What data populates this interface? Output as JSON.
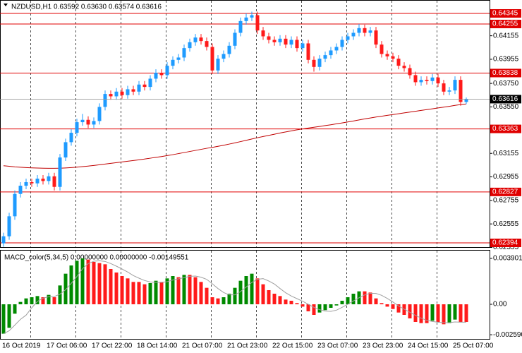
{
  "chart_data": [
    {
      "type": "candlestick",
      "title": "NZDUSD,H1  0.63592 0.63630 0.63574 0.63616",
      "categories": [
        "16 Oct 2019",
        null,
        null,
        null,
        null,
        null,
        null,
        null,
        "17 Oct 06:00",
        null,
        null,
        null,
        null,
        null,
        null,
        null,
        "17 Oct 22:00",
        null,
        null,
        null,
        null,
        null,
        null,
        null,
        "18 Oct 14:00",
        null,
        null,
        null,
        null,
        null,
        null,
        null,
        "21 Oct 07:00",
        null,
        null,
        null,
        null,
        null,
        null,
        null,
        "21 Oct 23:00",
        null,
        null,
        null,
        null,
        null,
        null,
        null,
        "22 Oct 15:00",
        null,
        null,
        null,
        null,
        null,
        null,
        null,
        "23 Oct 07:00",
        null,
        null,
        null,
        null,
        null,
        null,
        null,
        "23 Oct 23:00",
        null,
        null,
        null,
        null,
        null,
        null,
        null,
        "24 Oct 15:00",
        null,
        null,
        null,
        null,
        null,
        null,
        null,
        "25 Oct 07:00",
        null,
        null
      ],
      "open": [
        0.6239,
        0.6245,
        0.6262,
        0.6281,
        0.6288,
        0.6291,
        0.629,
        0.6294,
        0.6292,
        0.6296,
        0.6287,
        0.6312,
        0.6325,
        0.6333,
        0.6342,
        0.6344,
        0.634,
        0.6343,
        0.6355,
        0.6366,
        0.6364,
        0.6368,
        0.6365,
        0.637,
        0.6368,
        0.6374,
        0.6372,
        0.6379,
        0.6384,
        0.6382,
        0.639,
        0.6395,
        0.6397,
        0.6405,
        0.641,
        0.6414,
        0.6411,
        0.6406,
        0.6386,
        0.6396,
        0.64,
        0.6407,
        0.6418,
        0.6428,
        0.6431,
        0.6433,
        0.642,
        0.6415,
        0.6412,
        0.641,
        0.6413,
        0.6408,
        0.6412,
        0.6405,
        0.6409,
        0.6395,
        0.6389,
        0.6396,
        0.6399,
        0.6403,
        0.6406,
        0.6412,
        0.6415,
        0.6418,
        0.6422,
        0.6418,
        0.642,
        0.6408,
        0.64,
        0.6398,
        0.6396,
        0.639,
        0.6388,
        0.6382,
        0.6376,
        0.6378,
        0.6377,
        0.638,
        0.6375,
        0.6368,
        0.6369,
        0.6378,
        0.63592
      ],
      "high": [
        0.6248,
        0.6265,
        0.6284,
        0.6291,
        0.6294,
        0.6294,
        0.6297,
        0.6297,
        0.6299,
        0.6299,
        0.6315,
        0.6328,
        0.6336,
        0.6345,
        0.6349,
        0.6347,
        0.6346,
        0.6358,
        0.6369,
        0.6369,
        0.6371,
        0.6371,
        0.6373,
        0.6373,
        0.6377,
        0.6377,
        0.6382,
        0.6387,
        0.6387,
        0.6393,
        0.6398,
        0.64,
        0.6408,
        0.6413,
        0.6417,
        0.6417,
        0.6414,
        0.6409,
        0.6399,
        0.6403,
        0.641,
        0.6421,
        0.6431,
        0.64345,
        0.6436,
        0.6436,
        0.6423,
        0.6418,
        0.6415,
        0.6416,
        0.6416,
        0.6415,
        0.6415,
        0.6412,
        0.6412,
        0.6398,
        0.6399,
        0.6402,
        0.6406,
        0.6409,
        0.6415,
        0.6418,
        0.6421,
        0.64255,
        0.6425,
        0.6423,
        0.6423,
        0.6411,
        0.6403,
        0.6401,
        0.6399,
        0.6393,
        0.6391,
        0.6385,
        0.6381,
        0.6381,
        0.6383,
        0.6383,
        0.6378,
        0.6372,
        0.6381,
        0.6381,
        0.6363
      ],
      "low": [
        0.6236,
        0.6242,
        0.6259,
        0.6278,
        0.6285,
        0.6287,
        0.6287,
        0.6289,
        0.6289,
        0.6284,
        0.6284,
        0.6309,
        0.6322,
        0.633,
        0.6339,
        0.6337,
        0.6337,
        0.634,
        0.6352,
        0.6361,
        0.6361,
        0.6362,
        0.6362,
        0.6365,
        0.6365,
        0.6369,
        0.6369,
        0.6376,
        0.6379,
        0.6379,
        0.6387,
        0.6392,
        0.6394,
        0.6402,
        0.6407,
        0.6408,
        0.6403,
        0.6383,
        0.6383,
        0.6393,
        0.6397,
        0.6404,
        0.6415,
        0.6425,
        0.6428,
        0.6417,
        0.6412,
        0.6409,
        0.6407,
        0.6407,
        0.6405,
        0.6405,
        0.6402,
        0.6402,
        0.6392,
        0.6385,
        0.6386,
        0.6393,
        0.6396,
        0.64,
        0.6403,
        0.6409,
        0.6412,
        0.6415,
        0.6415,
        0.6415,
        0.6405,
        0.6397,
        0.6395,
        0.6393,
        0.6387,
        0.6385,
        0.6379,
        0.6373,
        0.6373,
        0.6374,
        0.6374,
        0.6372,
        0.6365,
        0.6365,
        0.6366,
        0.6356,
        0.63574
      ],
      "close": [
        0.6245,
        0.6262,
        0.6281,
        0.6288,
        0.6291,
        0.629,
        0.6294,
        0.6292,
        0.6296,
        0.6287,
        0.6312,
        0.6325,
        0.6333,
        0.6342,
        0.6344,
        0.634,
        0.6343,
        0.6355,
        0.6366,
        0.6364,
        0.6368,
        0.6365,
        0.637,
        0.6368,
        0.6374,
        0.6372,
        0.6379,
        0.6384,
        0.6382,
        0.639,
        0.6395,
        0.6397,
        0.6405,
        0.641,
        0.6414,
        0.6411,
        0.6406,
        0.6386,
        0.6396,
        0.64,
        0.6407,
        0.6418,
        0.6428,
        0.6431,
        0.6433,
        0.642,
        0.6415,
        0.6412,
        0.641,
        0.6413,
        0.6408,
        0.6412,
        0.6405,
        0.6409,
        0.6395,
        0.6389,
        0.6396,
        0.6399,
        0.6403,
        0.6406,
        0.6412,
        0.6415,
        0.6418,
        0.6422,
        0.6418,
        0.642,
        0.6408,
        0.64,
        0.6398,
        0.6396,
        0.639,
        0.6388,
        0.6382,
        0.6376,
        0.6378,
        0.6377,
        0.638,
        0.6375,
        0.6368,
        0.6369,
        0.6378,
        0.63592,
        0.63616
      ],
      "up_color": "#1e9bff",
      "down_color": "#ff1a1a",
      "ma": {
        "color": "#c00000",
        "values": [
          0.6305,
          0.63045,
          0.6304,
          0.63037,
          0.63034,
          0.63032,
          0.6303,
          0.63029,
          0.63028,
          0.63028,
          0.63029,
          0.63031,
          0.63034,
          0.63038,
          0.63042,
          0.63047,
          0.63052,
          0.63058,
          0.63064,
          0.6307,
          0.63076,
          0.63082,
          0.63088,
          0.63094,
          0.631,
          0.63107,
          0.63114,
          0.63121,
          0.63128,
          0.63136,
          0.63144,
          0.63153,
          0.63162,
          0.63171,
          0.6318,
          0.63189,
          0.63198,
          0.63206,
          0.63215,
          0.63224,
          0.63234,
          0.63244,
          0.63255,
          0.63266,
          0.63277,
          0.63288,
          0.63298,
          0.63308,
          0.63318,
          0.63328,
          0.63337,
          0.63346,
          0.63355,
          0.63363,
          0.6337,
          0.63377,
          0.63384,
          0.63391,
          0.63398,
          0.63406,
          0.63414,
          0.63422,
          0.6343,
          0.63439,
          0.63448,
          0.63456,
          0.63464,
          0.63471,
          0.63478,
          0.63485,
          0.63492,
          0.63499,
          0.63506,
          0.63513,
          0.6352,
          0.63527,
          0.63534,
          0.63541,
          0.63548,
          0.63555,
          0.63563,
          0.6357,
          0.63575
        ]
      },
      "levels": {
        "color": "#e00000",
        "values": [
          0.64345,
          0.64255,
          0.63838,
          0.63363,
          0.62827,
          0.62394
        ]
      },
      "current_price": 0.63616,
      "ylim": [
        0.62358,
        0.64459
      ],
      "yticks": [
        0.64155,
        0.63955,
        {
          "value": 0.6375,
          "label": "0.63750"
        },
        {
          "value": 0.6355,
          "label": "0.63550"
        },
        0.63155,
        0.62955,
        0.62755,
        0.62555,
        0.62355
      ]
    },
    {
      "type": "macd",
      "title": "MACD_color(5,34,5) 0.00000000 0.00000000 -0.00149551",
      "values": [
        -0.0025,
        -0.002,
        -0.0008,
        0.0002,
        0.0005,
        0.0006,
        0.0007,
        0.0006,
        0.0008,
        0.0006,
        0.0016,
        0.0026,
        0.0033,
        0.0037,
        0.0039,
        0.0038,
        0.0036,
        0.0035,
        0.0034,
        0.003,
        0.0027,
        0.0024,
        0.0022,
        0.0019,
        0.0019,
        0.0017,
        0.0018,
        0.002,
        0.0019,
        0.0022,
        0.0024,
        0.0023,
        0.0025,
        0.0025,
        0.0023,
        0.0019,
        0.0014,
        0.0006,
        0.0005,
        0.0006,
        0.0009,
        0.0014,
        0.002,
        0.0024,
        0.0026,
        0.0022,
        0.0017,
        0.0012,
        0.0009,
        0.0007,
        0.0004,
        0.0003,
        0.0001,
        -0.0002,
        -0.0006,
        -0.0009,
        -0.0007,
        -0.0005,
        -0.0003,
        -0.0001,
        0.0003,
        0.0006,
        0.0009,
        0.0011,
        0.0011,
        0.001,
        0.0005,
        0.0001,
        -0.0002,
        -0.0004,
        -0.0007,
        -0.0009,
        -0.0012,
        -0.0015,
        -0.0016,
        -0.0016,
        -0.0014,
        -0.0015,
        -0.0017,
        -0.0016,
        -0.0013,
        -0.0015,
        -0.0015
      ],
      "signal": [
        -0.0025,
        -0.00225,
        -0.00177,
        -0.00128,
        -0.00092,
        -0.0003,
        0.00024,
        0.00052,
        0.00064,
        0.00066,
        0.00086,
        0.00124,
        0.00178,
        0.00236,
        0.00302,
        0.00346,
        0.00366,
        0.0037,
        0.00364,
        0.00346,
        0.00324,
        0.003,
        0.00274,
        0.00244,
        0.00222,
        0.00202,
        0.0019,
        0.00186,
        0.00186,
        0.00192,
        0.00206,
        0.00216,
        0.00226,
        0.00238,
        0.0024,
        0.0023,
        0.00212,
        0.00174,
        0.00134,
        0.001,
        0.0008,
        0.0008,
        0.00108,
        0.00146,
        0.00186,
        0.00212,
        0.00218,
        0.00198,
        0.00172,
        0.00134,
        0.00098,
        0.0007,
        0.00048,
        0.00026,
        0,
        -0.00026,
        -0.00046,
        -0.00058,
        -0.0006,
        -0.0005,
        -0.00026,
        0,
        0.00028,
        0.00056,
        0.0008,
        0.00094,
        0.00092,
        0.00076,
        0.0005,
        0.0002,
        -0.00014,
        -0.00042,
        -0.00068,
        -0.00094,
        -0.00118,
        -0.00136,
        -0.00146,
        -0.00152,
        -0.00156,
        -0.00156,
        -0.0015,
        -0.00152,
        -0.00152
      ],
      "up_color": "#008a00",
      "down_color": "#ff1a1a",
      "signal_color": "#a0a0a0",
      "ylim": [
        -0.00282,
        0.00456
      ],
      "yticks": [
        0.003901,
        {
          "value": 0,
          "label": "0.00"
        },
        {
          "value": -0.00259,
          "label": "-0.002590"
        }
      ]
    }
  ]
}
